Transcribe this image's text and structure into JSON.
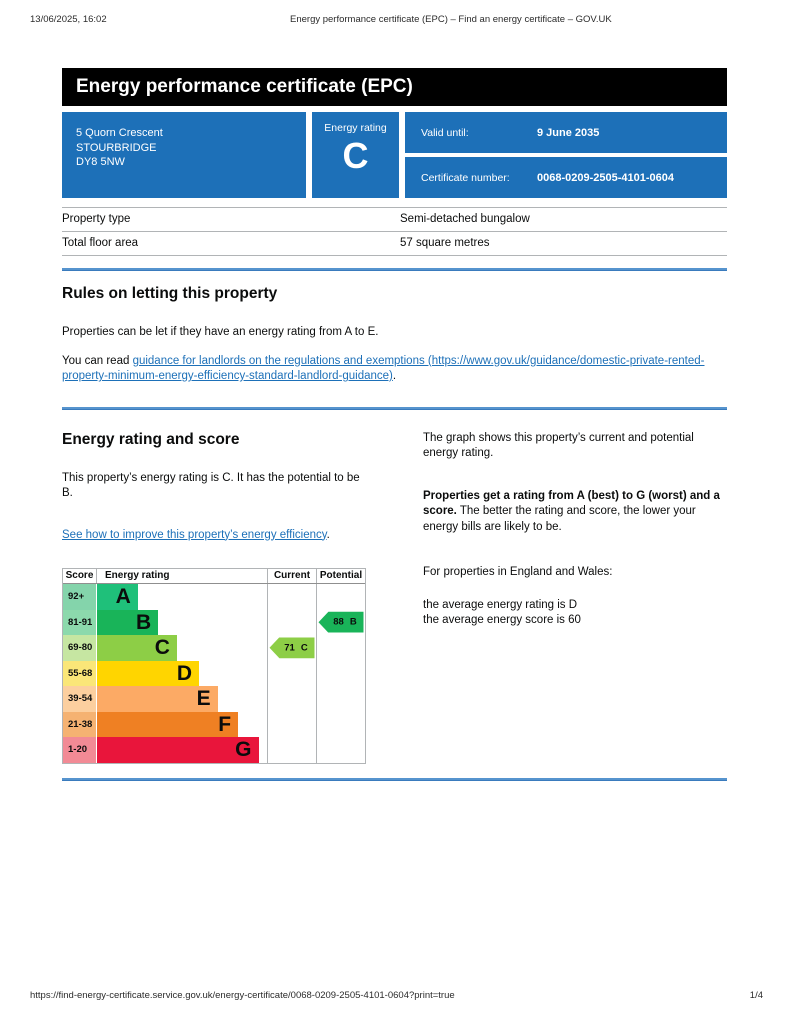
{
  "print_header": {
    "date": "13/06/2025, 16:02",
    "title": "Energy performance certificate (EPC) – Find an energy certificate – GOV.UK"
  },
  "banner": {
    "title": "Energy performance certificate (EPC)"
  },
  "summary": {
    "address_lines": [
      "5 Quorn Crescent",
      "STOURBRIDGE",
      "DY8 5NW"
    ],
    "energy_rating_label": "Energy rating",
    "energy_rating_value": "C",
    "valid_until_label": "Valid until:",
    "valid_until_value": "9 June 2035",
    "certificate_number_label": "Certificate number:",
    "certificate_number_value": "0068-0209-2505-4101-0604",
    "box_color": "#1d70b8"
  },
  "property_table": {
    "rows": [
      {
        "label": "Property type",
        "value": "Semi-detached bungalow"
      },
      {
        "label": "Total floor area",
        "value": "57 square metres"
      }
    ]
  },
  "letting_section": {
    "heading": "Rules on letting this property",
    "paragraph1": "Properties can be let if they have an energy rating from A to E.",
    "paragraph2_prefix": "You can read ",
    "link_text": "guidance for landlords on the regulations and exemptions (https://www.gov.uk/guidance/domestic-private-rented-property-minimum-energy-efficiency-standard-landlord-guidance)",
    "paragraph2_suffix": "."
  },
  "rating_section": {
    "heading": "Energy rating and score",
    "paragraph1": "This property’s energy rating is C. It has the potential to be B.",
    "link_text": "See how to improve this property’s energy efficiency",
    "link_suffix": ".",
    "right_paragraph1": "The graph shows this property’s current and potential energy rating.",
    "right_paragraph2_bold": "Properties get a rating from A (best) to G (worst) and a score.",
    "right_paragraph2_rest": " The better the rating and score, the lower your energy bills are likely to be.",
    "right_paragraph3": "For properties in England and Wales:",
    "right_line1": "the average energy rating is D",
    "right_line2": "the average energy score is 60"
  },
  "chart_data": {
    "type": "bar",
    "title": "Energy rating and score",
    "headers": {
      "score": "Score",
      "rating": "Energy rating",
      "current": "Current",
      "potential": "Potential"
    },
    "bands": [
      {
        "score": "92+",
        "letter": "A",
        "color": "#1fc07a",
        "tint": "#84d4ab",
        "width_pct": 24
      },
      {
        "score": "81-91",
        "letter": "B",
        "color": "#19b459",
        "tint": "#8cd9ac",
        "width_pct": 36
      },
      {
        "score": "69-80",
        "letter": "C",
        "color": "#8dce46",
        "tint": "#c6e6a2",
        "width_pct": 47
      },
      {
        "score": "55-68",
        "letter": "D",
        "color": "#ffd500",
        "tint": "#fae678",
        "width_pct": 60
      },
      {
        "score": "39-54",
        "letter": "E",
        "color": "#fcaa65",
        "tint": "#fccf9f",
        "width_pct": 71
      },
      {
        "score": "21-38",
        "letter": "F",
        "color": "#ef8023",
        "tint": "#f5b272",
        "width_pct": 83
      },
      {
        "score": "1-20",
        "letter": "G",
        "color": "#e9153b",
        "tint": "#f28a95",
        "width_pct": 95
      }
    ],
    "current": {
      "score": "71",
      "band": "C"
    },
    "potential": {
      "score": "88",
      "band": "B"
    }
  },
  "print_footer": {
    "url": "https://find-energy-certificate.service.gov.uk/energy-certificate/0068-0209-2505-4101-0604?print=true",
    "page": "1/4"
  },
  "colors": {
    "govuk_blue": "#1d70b8",
    "link": "#1d70b8",
    "banner_bg": "#000000",
    "section_rule_blue": "#5694ce"
  }
}
